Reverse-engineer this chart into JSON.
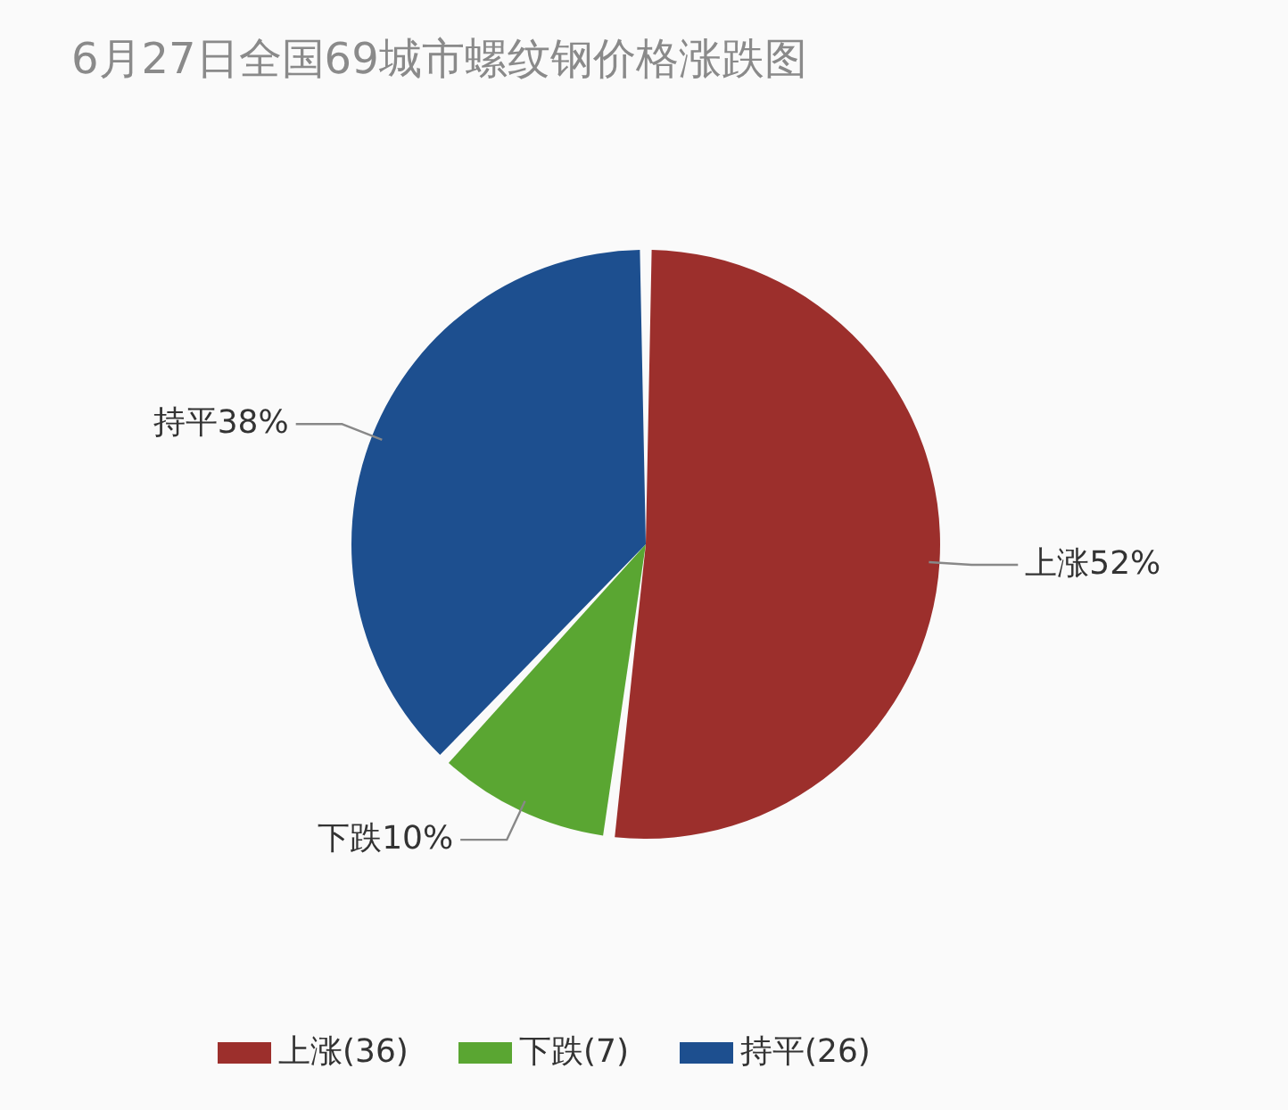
{
  "chart_data": {
    "type": "pie",
    "title": "6月27日全国69城市螺纹钢价格涨跌图",
    "categories": [
      "上涨(36)",
      "下跌(7)",
      "持平(26)"
    ],
    "values": [
      52,
      10,
      38
    ],
    "colors": [
      "#9c2f2c",
      "#5aa632",
      "#1d4f8f"
    ],
    "value_labels": [
      "上涨52%",
      "下跌10%",
      "持平38%"
    ],
    "legend": "bottom"
  }
}
